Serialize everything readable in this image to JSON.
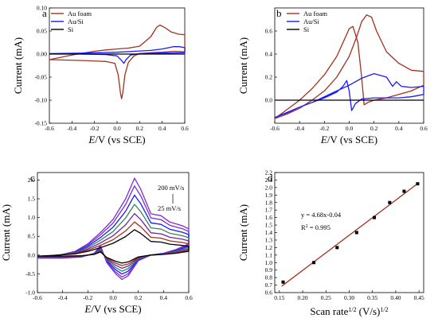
{
  "figure": {
    "panels": [
      {
        "label": "a"
      },
      {
        "label": "b"
      },
      {
        "label": "c"
      },
      {
        "label": "d"
      }
    ]
  },
  "colors": {
    "au_foam": "#a0321e",
    "au_si": "#1a1aff",
    "si": "#000000",
    "fit_line": "#a0321e",
    "points": "#000000",
    "cv_c": [
      "#7e2dd6",
      "#7e2dd6",
      "#1a1aff",
      "#2e8b57",
      "#7b1fa2",
      "#a0321e",
      "#000000"
    ]
  },
  "chart_data": [
    {
      "panel": "a",
      "type": "line",
      "ylabel": "Current (mA)",
      "xlabel_italic": "E",
      "xlabel_rest": "/V (vs SCE)",
      "xlim": [
        -0.6,
        0.6
      ],
      "ylim": [
        -0.15,
        0.1
      ],
      "x_ticks": [
        "-0.6",
        "-0.4",
        "-0.2",
        "0.0",
        "0.2",
        "0.4",
        "0.6"
      ],
      "y_ticks": [
        "-0.15",
        "-0.10",
        "-0.05",
        "0.00",
        "0.05",
        "0.10"
      ],
      "legend_position": "top-left",
      "series": [
        {
          "name": "Au foam",
          "color_key": "au_foam",
          "points": [
            [
              -0.6,
              -0.012
            ],
            [
              -0.5,
              -0.007
            ],
            [
              -0.4,
              -0.002
            ],
            [
              -0.3,
              0.002
            ],
            [
              -0.2,
              0.006
            ],
            [
              -0.1,
              0.009
            ],
            [
              0.0,
              0.011
            ],
            [
              0.1,
              0.013
            ],
            [
              0.2,
              0.017
            ],
            [
              0.3,
              0.038
            ],
            [
              0.35,
              0.058
            ],
            [
              0.38,
              0.063
            ],
            [
              0.42,
              0.058
            ],
            [
              0.48,
              0.048
            ],
            [
              0.55,
              0.043
            ],
            [
              0.6,
              0.042
            ],
            [
              0.6,
              0.005
            ],
            [
              0.5,
              0.006
            ],
            [
              0.4,
              0.004
            ],
            [
              0.3,
              0.003
            ],
            [
              0.2,
              0.001
            ],
            [
              0.15,
              -0.004
            ],
            [
              0.1,
              -0.018
            ],
            [
              0.07,
              -0.045
            ],
            [
              0.05,
              -0.085
            ],
            [
              0.04,
              -0.097
            ],
            [
              0.03,
              -0.085
            ],
            [
              0.01,
              -0.045
            ],
            [
              -0.02,
              -0.02
            ],
            [
              -0.1,
              -0.016
            ],
            [
              -0.3,
              -0.014
            ],
            [
              -0.6,
              -0.012
            ]
          ]
        },
        {
          "name": "Au/Si",
          "color_key": "au_si",
          "points": [
            [
              -0.6,
              0.001
            ],
            [
              -0.3,
              0.002
            ],
            [
              0.0,
              0.004
            ],
            [
              0.15,
              0.006
            ],
            [
              0.3,
              0.008
            ],
            [
              0.4,
              0.011
            ],
            [
              0.5,
              0.016
            ],
            [
              0.55,
              0.016
            ],
            [
              0.6,
              0.014
            ],
            [
              0.6,
              0.003
            ],
            [
              0.4,
              0.002
            ],
            [
              0.2,
              0.001
            ],
            [
              0.12,
              -0.002
            ],
            [
              0.08,
              -0.012
            ],
            [
              0.06,
              -0.02
            ],
            [
              0.04,
              -0.014
            ],
            [
              0.0,
              -0.004
            ],
            [
              -0.1,
              -0.001
            ],
            [
              -0.3,
              0.0
            ],
            [
              -0.6,
              0.001
            ]
          ]
        },
        {
          "name": "Si",
          "color_key": "si",
          "points": [
            [
              -0.6,
              0.0
            ],
            [
              -0.2,
              0.0
            ],
            [
              0.2,
              0.0
            ],
            [
              0.6,
              0.0
            ]
          ]
        }
      ]
    },
    {
      "panel": "b",
      "type": "line",
      "ylabel": "Current (mA)",
      "xlabel_italic": "E",
      "xlabel_rest": "/V (vs SCE)",
      "xlim": [
        -0.6,
        0.6
      ],
      "ylim": [
        -0.2,
        0.8
      ],
      "x_ticks": [
        "-0.6",
        "-0.4",
        "-0.2",
        "0.0",
        "0.2",
        "0.4",
        "0.6"
      ],
      "y_ticks": [
        "0.0",
        "0.2",
        "0.4",
        "0.6"
      ],
      "legend_position": "top-right",
      "series": [
        {
          "name": "Au foam",
          "color_key": "au_foam",
          "points": [
            [
              -0.6,
              -0.16
            ],
            [
              -0.5,
              -0.12
            ],
            [
              -0.4,
              -0.07
            ],
            [
              -0.3,
              0.0
            ],
            [
              -0.2,
              0.08
            ],
            [
              -0.1,
              0.2
            ],
            [
              0.0,
              0.38
            ],
            [
              0.06,
              0.55
            ],
            [
              0.1,
              0.68
            ],
            [
              0.14,
              0.74
            ],
            [
              0.18,
              0.72
            ],
            [
              0.22,
              0.6
            ],
            [
              0.3,
              0.42
            ],
            [
              0.4,
              0.32
            ],
            [
              0.5,
              0.26
            ],
            [
              0.6,
              0.25
            ],
            [
              0.6,
              0.13
            ],
            [
              0.5,
              0.08
            ],
            [
              0.4,
              0.05
            ],
            [
              0.3,
              0.02
            ],
            [
              0.2,
              0.0
            ],
            [
              0.15,
              -0.02
            ],
            [
              0.12,
              -0.04
            ],
            [
              0.1,
              0.2
            ],
            [
              0.07,
              0.5
            ],
            [
              0.03,
              0.64
            ],
            [
              0.0,
              0.62
            ],
            [
              -0.05,
              0.5
            ],
            [
              -0.1,
              0.38
            ],
            [
              -0.2,
              0.22
            ],
            [
              -0.3,
              0.1
            ],
            [
              -0.4,
              0.0
            ],
            [
              -0.5,
              -0.08
            ],
            [
              -0.6,
              -0.16
            ]
          ]
        },
        {
          "name": "Au/Si",
          "color_key": "au_si",
          "points": [
            [
              -0.6,
              -0.15
            ],
            [
              -0.5,
              -0.11
            ],
            [
              -0.4,
              -0.06
            ],
            [
              -0.3,
              -0.02
            ],
            [
              -0.2,
              0.03
            ],
            [
              -0.1,
              0.08
            ],
            [
              0.0,
              0.13
            ],
            [
              0.1,
              0.19
            ],
            [
              0.2,
              0.23
            ],
            [
              0.3,
              0.2
            ],
            [
              0.35,
              0.12
            ],
            [
              0.38,
              0.16
            ],
            [
              0.42,
              0.12
            ],
            [
              0.5,
              0.11
            ],
            [
              0.6,
              0.12
            ],
            [
              0.6,
              0.05
            ],
            [
              0.5,
              0.03
            ],
            [
              0.4,
              0.02
            ],
            [
              0.2,
              0.02
            ],
            [
              0.1,
              0.01
            ],
            [
              0.05,
              -0.03
            ],
            [
              0.02,
              -0.09
            ],
            [
              0.0,
              0.08
            ],
            [
              -0.02,
              0.17
            ],
            [
              -0.05,
              0.12
            ],
            [
              -0.1,
              0.07
            ],
            [
              -0.2,
              0.02
            ],
            [
              -0.4,
              -0.06
            ],
            [
              -0.6,
              -0.15
            ]
          ]
        },
        {
          "name": "Si",
          "color_key": "si",
          "points": [
            [
              -0.6,
              0.0
            ],
            [
              -0.2,
              0.0
            ],
            [
              0.2,
              0.0
            ],
            [
              0.6,
              0.0
            ]
          ]
        }
      ]
    },
    {
      "panel": "c",
      "type": "line",
      "ylabel": "Current (mA)",
      "xlabel_italic": "E",
      "xlabel_rest": "/V (vs SCE)",
      "xlim": [
        -0.6,
        0.6
      ],
      "ylim": [
        -1.0,
        2.2
      ],
      "x_ticks": [
        "-0.6",
        "-0.4",
        "-0.2",
        "0.0",
        "0.2",
        "0.4",
        "0.6"
      ],
      "y_ticks": [
        "-1.0",
        "-0.5",
        "0.0",
        "0.5",
        "1.0",
        "1.5",
        "2.0"
      ],
      "annotations": [
        "200 mV/s",
        "25 mV/s"
      ],
      "series": [
        {
          "scale": 1.0,
          "color_index": 0
        },
        {
          "scale": 0.9,
          "color_index": 1
        },
        {
          "scale": 0.78,
          "color_index": 2
        },
        {
          "scale": 0.66,
          "color_index": 3
        },
        {
          "scale": 0.54,
          "color_index": 4
        },
        {
          "scale": 0.43,
          "color_index": 5
        },
        {
          "scale": 0.33,
          "color_index": 6
        }
      ],
      "base_curve": [
        [
          -0.6,
          -0.08
        ],
        [
          -0.5,
          -0.04
        ],
        [
          -0.4,
          0.02
        ],
        [
          -0.3,
          0.1
        ],
        [
          -0.2,
          0.3
        ],
        [
          -0.1,
          0.6
        ],
        [
          0.0,
          0.95
        ],
        [
          0.1,
          1.5
        ],
        [
          0.17,
          2.05
        ],
        [
          0.22,
          1.75
        ],
        [
          0.3,
          1.1
        ],
        [
          0.38,
          1.05
        ],
        [
          0.45,
          0.88
        ],
        [
          0.55,
          0.78
        ],
        [
          0.6,
          0.7
        ],
        [
          0.6,
          0.3
        ],
        [
          0.5,
          0.15
        ],
        [
          0.4,
          0.05
        ],
        [
          0.3,
          0.0
        ],
        [
          0.2,
          -0.15
        ],
        [
          0.12,
          -0.55
        ],
        [
          0.07,
          -0.65
        ],
        [
          0.02,
          -0.5
        ],
        [
          -0.05,
          -0.2
        ],
        [
          -0.1,
          0.25
        ],
        [
          -0.15,
          0.05
        ],
        [
          -0.25,
          -0.05
        ],
        [
          -0.4,
          -0.08
        ],
        [
          -0.6,
          -0.08
        ]
      ]
    },
    {
      "panel": "d",
      "type": "scatter",
      "ylabel": "Current (mA)",
      "xlabel_main": "Scan rate",
      "xlabel_sup1": "1/2",
      "xlabel_unit": "(V/s)",
      "xlabel_sup2": "1/2",
      "xlim": [
        0.14,
        0.46
      ],
      "ylim": [
        0.6,
        2.2
      ],
      "x_ticks": [
        "0.15",
        "0.20",
        "0.25",
        "0.30",
        "0.35",
        "0.40",
        "0.45"
      ],
      "y_ticks": [
        "0.6",
        "0.7",
        "0.8",
        "0.9",
        "1.0",
        "1.1",
        "1.2",
        "1.3",
        "1.4",
        "1.5",
        "1.6",
        "1.7",
        "1.8",
        "1.9",
        "2.0",
        "2.1",
        "2.2"
      ],
      "equation": "y = 4.68x-0.04",
      "r2_label": "R",
      "r2_sup": "2",
      "r2_value": " = 0.995",
      "points": [
        [
          0.158,
          0.74
        ],
        [
          0.224,
          1.0
        ],
        [
          0.274,
          1.2
        ],
        [
          0.316,
          1.4
        ],
        [
          0.354,
          1.6
        ],
        [
          0.387,
          1.8
        ],
        [
          0.418,
          1.95
        ],
        [
          0.447,
          2.05
        ]
      ],
      "fit": {
        "slope": 4.68,
        "intercept": -0.04,
        "x_range": [
          0.155,
          0.45
        ]
      }
    }
  ]
}
